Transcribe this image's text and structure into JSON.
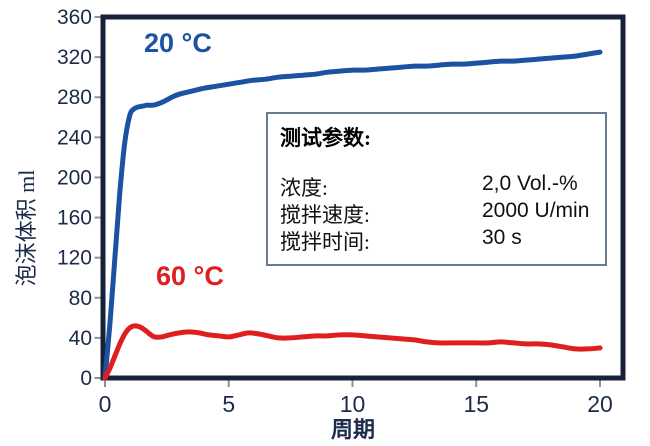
{
  "chart_data": {
    "type": "line",
    "title": "",
    "xlabel": "周期",
    "ylabel": "泡沫体积 ml",
    "xlim": [
      0,
      20
    ],
    "ylim": [
      0,
      360
    ],
    "xticks": [
      0,
      5,
      10,
      15,
      20
    ],
    "yticks": [
      0,
      40,
      80,
      120,
      160,
      200,
      240,
      280,
      320,
      360
    ],
    "grid": false,
    "legend_position": "inline-annotations",
    "series": [
      {
        "name": "20 °C",
        "color": "#1c52a2",
        "x": [
          0,
          0.2,
          0.4,
          0.6,
          0.8,
          1.0,
          1.15,
          1.3,
          1.5,
          1.7,
          1.9,
          2.1,
          2.4,
          2.7,
          3.0,
          3.5,
          4.0,
          4.5,
          5.0,
          5.5,
          6.0,
          6.5,
          7.0,
          7.5,
          8.0,
          8.5,
          9.0,
          9.5,
          10.0,
          10.5,
          11.0,
          11.5,
          12.0,
          12.5,
          13.0,
          13.5,
          14.0,
          14.5,
          15.0,
          15.5,
          16.0,
          16.5,
          17.0,
          17.5,
          18.0,
          18.5,
          19.0,
          19.5,
          20.0
        ],
        "y": [
          0,
          55,
          120,
          185,
          235,
          262,
          268,
          270,
          271,
          272,
          272,
          273,
          276,
          280,
          283,
          286,
          289,
          291,
          293,
          295,
          297,
          298,
          300,
          301,
          302,
          303,
          305,
          306,
          307,
          307,
          308,
          309,
          310,
          311,
          311,
          312,
          313,
          313,
          314,
          315,
          316,
          316,
          317,
          318,
          319,
          320,
          321,
          323,
          325
        ]
      },
      {
        "name": "60 °C",
        "color": "#df1f1f",
        "x": [
          0,
          0.2,
          0.4,
          0.6,
          0.8,
          1.0,
          1.2,
          1.4,
          1.6,
          1.8,
          2.0,
          2.3,
          2.6,
          3.0,
          3.4,
          3.8,
          4.2,
          4.6,
          5.0,
          5.4,
          5.8,
          6.2,
          6.6,
          7.0,
          7.5,
          8.0,
          8.5,
          9.0,
          9.5,
          10.0,
          10.5,
          11.0,
          11.5,
          12.0,
          12.5,
          13.0,
          13.5,
          14.0,
          14.5,
          15.0,
          15.5,
          16.0,
          16.5,
          17.0,
          17.5,
          18.0,
          18.5,
          19.0,
          19.5,
          20.0
        ],
        "y": [
          0,
          10,
          22,
          34,
          44,
          50,
          52,
          51,
          48,
          44,
          41,
          41,
          43,
          45,
          46,
          45,
          43,
          42,
          41,
          43,
          45,
          44,
          42,
          40,
          40,
          41,
          42,
          42,
          43,
          43,
          42,
          41,
          40,
          39,
          38,
          36,
          35,
          35,
          35,
          35,
          35,
          36,
          35,
          34,
          34,
          33,
          31,
          29,
          29,
          30
        ]
      }
    ]
  },
  "param_box": {
    "title": "测试参数:",
    "rows": [
      {
        "label": "浓度:",
        "value": "2,0 Vol.-%"
      },
      {
        "label": "搅拌速度:",
        "value": "2000 U/min"
      },
      {
        "label": "搅拌时间:",
        "value": "30 s"
      }
    ]
  },
  "colors": {
    "axis_frame": "#17213a",
    "tick": "#8e9399",
    "tick_label": "#1c2b4a",
    "series_20c": "#1c52a2",
    "series_60c": "#df1f1f",
    "box_border": "#6b7a94"
  }
}
